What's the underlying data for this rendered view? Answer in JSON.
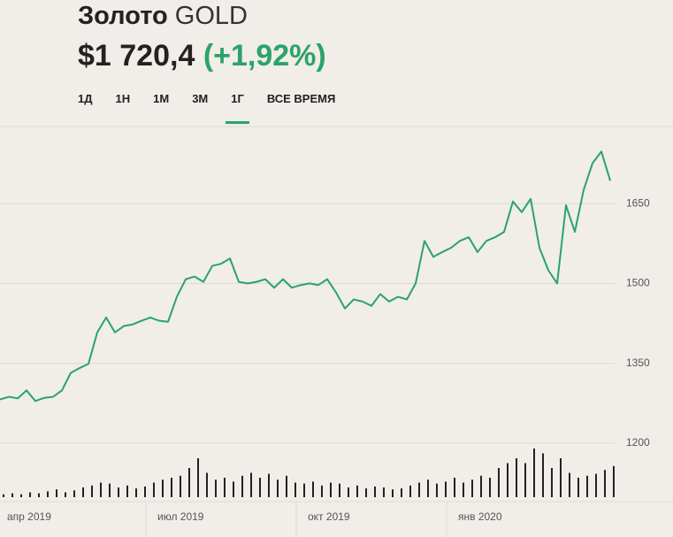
{
  "header": {
    "name": "Золото",
    "ticker": "GOLD",
    "price": "$1 720,4",
    "change": "(+1,92%)"
  },
  "tabs": [
    "1Д",
    "1Н",
    "1М",
    "3М",
    "1Г",
    "ВСЕ ВРЕМЯ"
  ],
  "active_tab": 4,
  "chart_data": {
    "type": "line",
    "categories": [
      "апр 2019",
      null,
      null,
      null,
      null,
      null,
      null,
      null,
      null,
      null,
      null,
      null,
      null,
      null,
      null,
      null,
      null,
      "июл 2019",
      null,
      null,
      null,
      null,
      null,
      null,
      null,
      null,
      null,
      null,
      null,
      null,
      null,
      null,
      null,
      null,
      "окт 2019",
      null,
      null,
      null,
      null,
      null,
      null,
      null,
      null,
      null,
      null,
      null,
      null,
      null,
      null,
      null,
      null,
      "янв 2020",
      null,
      null,
      null,
      null,
      null,
      null,
      null,
      null,
      null,
      null,
      null,
      null,
      null,
      null,
      null,
      null,
      null,
      null
    ],
    "series": [
      {
        "color": "#2aa36b",
        "values": [
          1282,
          1287,
          1284,
          1299,
          1279,
          1285,
          1287,
          1299,
          1332,
          1341,
          1349,
          1408,
          1436,
          1408,
          1420,
          1423,
          1430,
          1436,
          1430,
          1428,
          1475,
          1508,
          1513,
          1503,
          1533,
          1537,
          1547,
          1503,
          1500,
          1503,
          1508,
          1492,
          1508,
          1492,
          1497,
          1500,
          1497,
          1508,
          1483,
          1453,
          1470,
          1466,
          1458,
          1480,
          1466,
          1475,
          1470,
          1500,
          1580,
          1550,
          1559,
          1567,
          1580,
          1587,
          1559,
          1580,
          1587,
          1597,
          1654,
          1634,
          1659,
          1567,
          1525,
          1500,
          1647,
          1597,
          1676,
          1726,
          1748,
          1693
        ]
      }
    ],
    "volume": {
      "color": "#222222",
      "values": [
        3,
        4,
        3,
        5,
        4,
        6,
        8,
        5,
        7,
        10,
        12,
        15,
        14,
        10,
        12,
        9,
        11,
        15,
        18,
        20,
        22,
        30,
        40,
        25,
        18,
        20,
        16,
        22,
        25,
        20,
        24,
        18,
        22,
        15,
        14,
        16,
        12,
        15,
        14,
        10,
        12,
        9,
        11,
        10,
        8,
        9,
        12,
        15,
        18,
        14,
        16,
        20,
        15,
        18,
        22,
        20,
        30,
        35,
        40,
        35,
        50,
        45,
        30,
        40,
        25,
        20,
        22,
        24,
        28,
        32
      ]
    },
    "ylim": [
      1090,
      1795
    ],
    "yticks": [
      1200,
      1350,
      1500,
      1650
    ],
    "grid": true
  }
}
